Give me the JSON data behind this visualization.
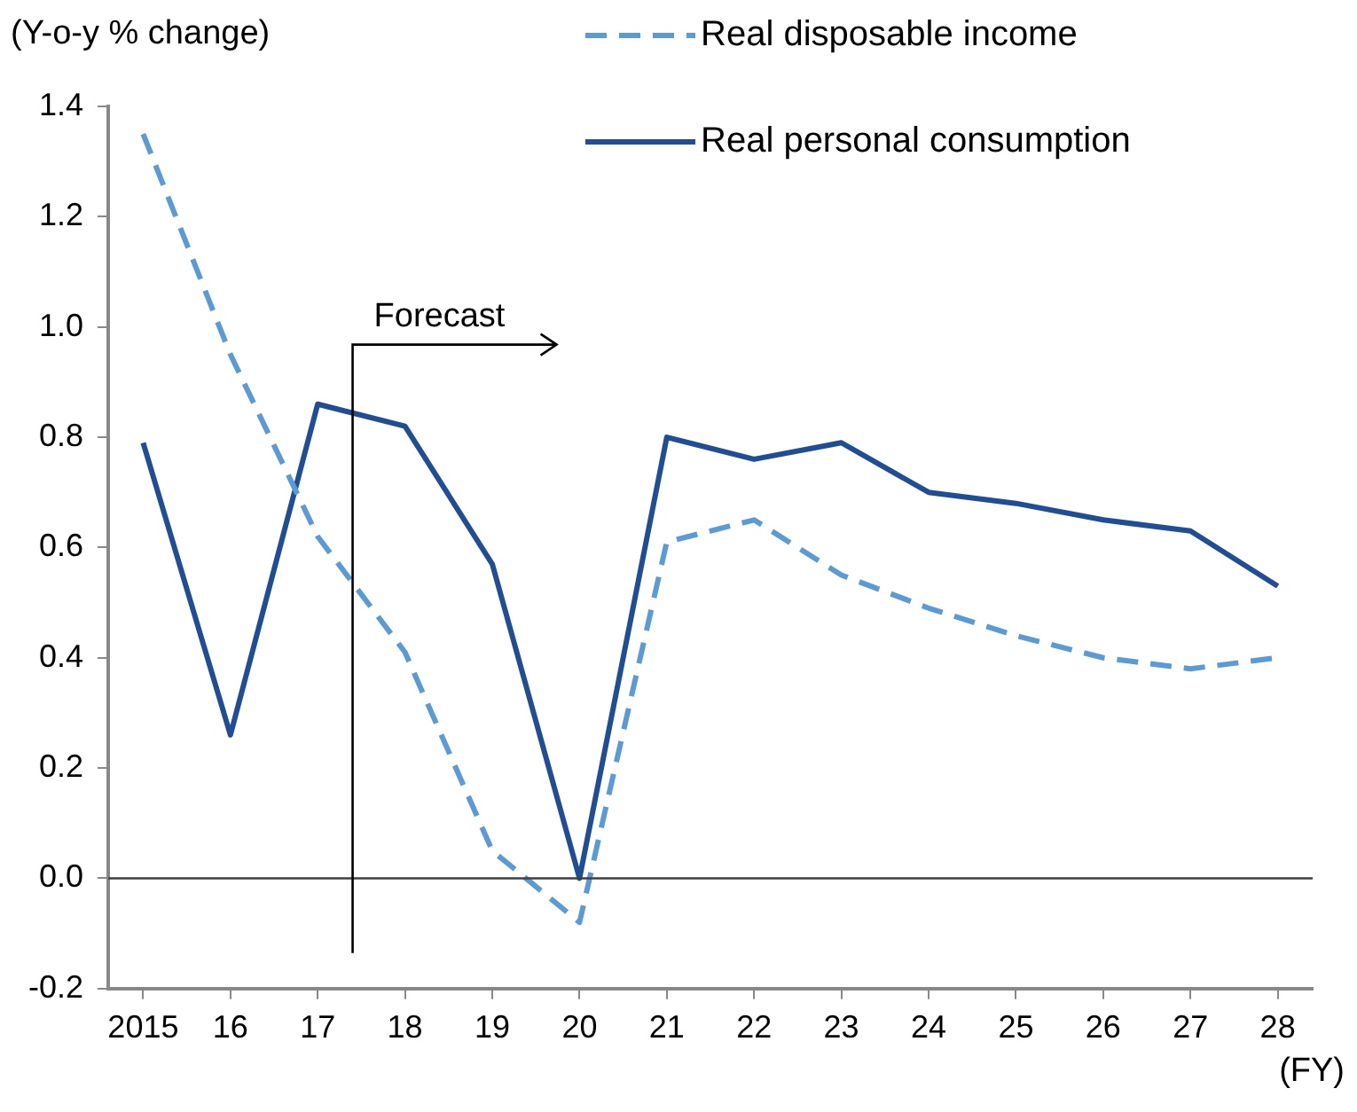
{
  "chart_data": {
    "type": "line",
    "ylabel": "(Y-o-y % change)",
    "xlabel": "(FY)",
    "x": [
      2015,
      2016,
      2017,
      2018,
      2019,
      2020,
      2021,
      2022,
      2023,
      2024,
      2025,
      2026,
      2027,
      2028
    ],
    "xlim": [
      2014.6,
      2028.4
    ],
    "xticks": [
      {
        "value": 2015,
        "label": "2015"
      },
      {
        "value": 2016,
        "label": "16"
      },
      {
        "value": 2017,
        "label": "17"
      },
      {
        "value": 2018,
        "label": "18"
      },
      {
        "value": 2019,
        "label": "19"
      },
      {
        "value": 2020,
        "label": "20"
      },
      {
        "value": 2021,
        "label": "21"
      },
      {
        "value": 2022,
        "label": "22"
      },
      {
        "value": 2023,
        "label": "23"
      },
      {
        "value": 2024,
        "label": "24"
      },
      {
        "value": 2025,
        "label": "25"
      },
      {
        "value": 2026,
        "label": "26"
      },
      {
        "value": 2027,
        "label": "27"
      },
      {
        "value": 2028,
        "label": "28"
      }
    ],
    "ylim": [
      -0.2,
      1.4
    ],
    "yticks": [
      {
        "value": -0.2,
        "label": "-0.2"
      },
      {
        "value": 0,
        "label": "0.0"
      },
      {
        "value": 0.2,
        "label": "0.2"
      },
      {
        "value": 0.4,
        "label": "0.4"
      },
      {
        "value": 0.6,
        "label": "0.6"
      },
      {
        "value": 0.8,
        "label": "0.8"
      },
      {
        "value": 1,
        "label": "1.0"
      },
      {
        "value": 1.2,
        "label": "1.2"
      },
      {
        "value": 1.4,
        "label": "1.4"
      }
    ],
    "series": [
      {
        "name": "Real disposable income",
        "color": "#5b9bd5",
        "line_style": "dashed",
        "values": [
          1.35,
          0.95,
          0.62,
          0.41,
          0.05,
          -0.08,
          0.61,
          0.65,
          0.55,
          0.49,
          0.44,
          0.4,
          0.38,
          0.4
        ]
      },
      {
        "name": "Real personal consumption",
        "color": "#1f4e96",
        "line_style": "solid",
        "values": [
          0.79,
          0.26,
          0.86,
          0.82,
          0.57,
          0,
          0.8,
          0.76,
          0.79,
          0.7,
          0.68,
          0.65,
          0.63,
          0.53
        ]
      }
    ],
    "ref_lines": [
      {
        "axis": "y",
        "value": 0,
        "color": "#404040"
      },
      {
        "axis": "x",
        "value": 2017.4,
        "label": "Forecast",
        "color": "#000000"
      }
    ],
    "legend": "top right",
    "marker": "none",
    "grid": false
  }
}
